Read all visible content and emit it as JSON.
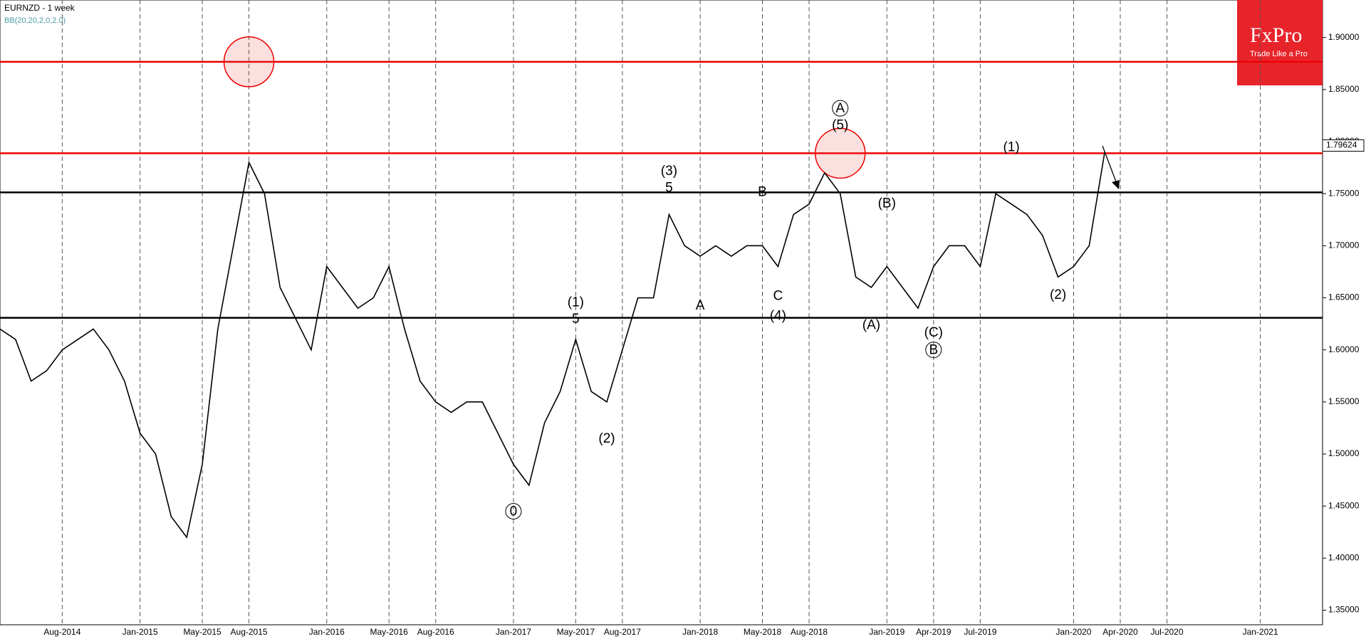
{
  "chart_data": {
    "type": "line",
    "title": "EURNZD - 1 week",
    "subtitle": "BB(20,20,2,0,2.0)",
    "x": [
      "2014-04",
      "2014-05",
      "2014-06",
      "2014-07",
      "2014-08",
      "2014-09",
      "2014-10",
      "2014-11",
      "2014-12",
      "2015-01",
      "2015-02",
      "2015-03",
      "2015-04",
      "2015-05",
      "2015-06",
      "2015-07",
      "2015-08",
      "2015-09",
      "2015-10",
      "2015-11",
      "2015-12",
      "2016-01",
      "2016-02",
      "2016-03",
      "2016-04",
      "2016-05",
      "2016-06",
      "2016-07",
      "2016-08",
      "2016-09",
      "2016-10",
      "2016-11",
      "2016-12",
      "2017-01",
      "2017-02",
      "2017-03",
      "2017-04",
      "2017-05",
      "2017-06",
      "2017-07",
      "2017-08",
      "2017-09",
      "2017-10",
      "2017-11",
      "2017-12",
      "2018-01",
      "2018-02",
      "2018-03",
      "2018-04",
      "2018-05",
      "2018-06",
      "2018-07",
      "2018-08",
      "2018-09",
      "2018-10",
      "2018-11",
      "2018-12",
      "2019-01",
      "2019-02",
      "2019-03",
      "2019-04",
      "2019-05",
      "2019-06",
      "2019-07",
      "2019-08",
      "2019-09",
      "2019-10",
      "2019-11",
      "2019-12",
      "2020-01",
      "2020-02",
      "2020-03"
    ],
    "series": [
      {
        "color": "#000000",
        "values": [
          1.62,
          1.61,
          1.57,
          1.58,
          1.6,
          1.61,
          1.62,
          1.6,
          1.57,
          1.52,
          1.5,
          1.44,
          1.42,
          1.49,
          1.62,
          1.7,
          1.78,
          1.75,
          1.66,
          1.63,
          1.6,
          1.68,
          1.66,
          1.64,
          1.65,
          1.68,
          1.62,
          1.57,
          1.55,
          1.54,
          1.55,
          1.55,
          1.52,
          1.49,
          1.47,
          1.53,
          1.56,
          1.61,
          1.56,
          1.55,
          1.6,
          1.65,
          1.65,
          1.73,
          1.7,
          1.69,
          1.7,
          1.69,
          1.7,
          1.7,
          1.68,
          1.73,
          1.74,
          1.77,
          1.75,
          1.67,
          1.66,
          1.68,
          1.66,
          1.64,
          1.68,
          1.7,
          1.7,
          1.68,
          1.75,
          1.74,
          1.73,
          1.71,
          1.67,
          1.68,
          1.7,
          1.79
        ]
      }
    ],
    "xlim": [
      "2014-04",
      "2021-05"
    ],
    "xticks": [
      {
        "value": "2014-08",
        "label": "Aug-2014"
      },
      {
        "value": "2015-01",
        "label": "Jan-2015"
      },
      {
        "value": "2015-05",
        "label": "May-2015"
      },
      {
        "value": "2015-08",
        "label": "Aug-2015"
      },
      {
        "value": "2016-01",
        "label": "Jan-2016"
      },
      {
        "value": "2016-05",
        "label": "May-2016"
      },
      {
        "value": "2016-08",
        "label": "Aug-2016"
      },
      {
        "value": "2017-01",
        "label": "Jan-2017"
      },
      {
        "value": "2017-05",
        "label": "May-2017"
      },
      {
        "value": "2017-08",
        "label": "Aug-2017"
      },
      {
        "value": "2018-01",
        "label": "Jan-2018"
      },
      {
        "value": "2018-05",
        "label": "May-2018"
      },
      {
        "value": "2018-08",
        "label": "Aug-2018"
      },
      {
        "value": "2019-01",
        "label": "Jan-2019"
      },
      {
        "value": "2019-04",
        "label": "Apr-2019"
      },
      {
        "value": "2019-07",
        "label": "Jul-2019"
      },
      {
        "value": "2020-01",
        "label": "Jan-2020"
      },
      {
        "value": "2020-04",
        "label": "Apr-2020"
      },
      {
        "value": "2020-07",
        "label": "Jul-2020"
      },
      {
        "value": "2021-01",
        "label": "Jan-2021"
      }
    ],
    "ylim": [
      1.336,
      1.936
    ],
    "yticks": [
      {
        "value": 1.35,
        "label": "1.35000"
      },
      {
        "value": 1.4,
        "label": "1.40000"
      },
      {
        "value": 1.45,
        "label": "1.45000"
      },
      {
        "value": 1.5,
        "label": "1.50000"
      },
      {
        "value": 1.55,
        "label": "1.55000"
      },
      {
        "value": 1.6,
        "label": "1.60000"
      },
      {
        "value": 1.65,
        "label": "1.65000"
      },
      {
        "value": 1.7,
        "label": "1.70000"
      },
      {
        "value": 1.75,
        "label": "1.75000"
      },
      {
        "value": 1.8,
        "label": "1.80000"
      },
      {
        "value": 1.85,
        "label": "1.85000"
      },
      {
        "value": 1.9,
        "label": "1.90000"
      }
    ],
    "levels": [
      {
        "value": 1.8766,
        "color": "#ee0000"
      },
      {
        "value": 1.7888,
        "color": "#ee0000"
      },
      {
        "value": 1.7512,
        "color": "#000000"
      },
      {
        "value": 1.6308,
        "color": "#000000"
      }
    ],
    "last_price": {
      "value": 1.79624,
      "label": "1.79624"
    },
    "highlights": [
      {
        "x": "2015-08",
        "y": 1.8766
      },
      {
        "x": "2018-10",
        "y": 1.7888
      }
    ],
    "annotations": [
      {
        "text": "0",
        "x": "2017-01",
        "y": 1.445,
        "circled": true
      },
      {
        "text": "(1)",
        "x": "2017-05",
        "y": 1.646
      },
      {
        "text": "5",
        "x": "2017-05",
        "y": 1.63
      },
      {
        "text": "(2)",
        "x": "2017-07",
        "y": 1.515
      },
      {
        "text": "(3)",
        "x": "2017-11",
        "y": 1.772
      },
      {
        "text": "5",
        "x": "2017-11",
        "y": 1.756
      },
      {
        "text": "A",
        "x": "2018-01",
        "y": 1.643
      },
      {
        "text": "B",
        "x": "2018-05",
        "y": 1.752
      },
      {
        "text": "C",
        "x": "2018-06",
        "y": 1.652
      },
      {
        "text": "(4)",
        "x": "2018-06",
        "y": 1.633
      },
      {
        "text": "A",
        "x": "2018-10",
        "y": 1.832,
        "circled": true
      },
      {
        "text": "(5)",
        "x": "2018-10",
        "y": 1.816
      },
      {
        "text": "(B)",
        "x": "2019-01",
        "y": 1.741
      },
      {
        "text": "(A)",
        "x": "2018-12",
        "y": 1.624
      },
      {
        "text": "(C)",
        "x": "2019-04",
        "y": 1.617
      },
      {
        "text": "B",
        "x": "2019-04",
        "y": 1.6,
        "circled": true
      },
      {
        "text": "(1)",
        "x": "2019-09",
        "y": 1.795
      },
      {
        "text": "(2)",
        "x": "2019-12",
        "y": 1.653
      }
    ]
  },
  "logo": {
    "name": "FxPro",
    "tagline": "Trade Like a Pro"
  }
}
